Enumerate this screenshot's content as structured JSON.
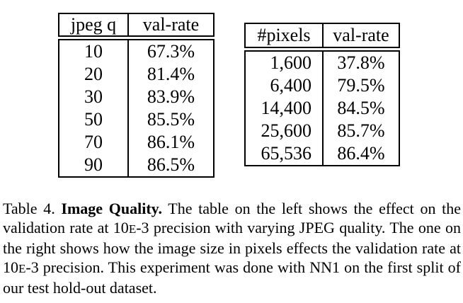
{
  "tables": {
    "left": {
      "headers": [
        "jpeg q",
        "val-rate"
      ],
      "rows": [
        [
          "10",
          "67.3%"
        ],
        [
          "20",
          "81.4%"
        ],
        [
          "30",
          "83.9%"
        ],
        [
          "50",
          "85.5%"
        ],
        [
          "70",
          "86.1%"
        ],
        [
          "90",
          "86.5%"
        ]
      ]
    },
    "right": {
      "headers": [
        "#pixels",
        "val-rate"
      ],
      "rows": [
        [
          "1,600",
          "37.8%"
        ],
        [
          "6,400",
          "79.5%"
        ],
        [
          "14,400",
          "84.5%"
        ],
        [
          "25,600",
          "85.7%"
        ],
        [
          "65,536",
          "86.4%"
        ]
      ]
    }
  },
  "caption": {
    "label": "Table 4.",
    "title": "Image Quality.",
    "body_1": "The table on the left shows the effect on the validation rate at 10",
    "exp_1": "E",
    "body_2": "-3 precision with varying JPEG quality. The one on the right shows how the image size in pixels effects the validation rate at 10",
    "exp_2": "E",
    "body_3": "-3 precision. This experiment was done with NN1 on the first split of our test hold-out dataset."
  },
  "colors": {
    "text": "#000000",
    "border": "#000000",
    "background": "#ffffff"
  }
}
